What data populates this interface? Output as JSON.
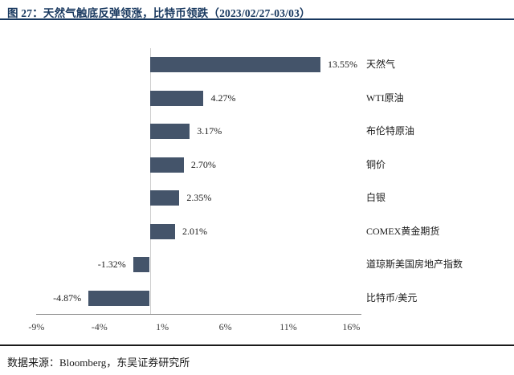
{
  "header": {
    "title": "图 27：天然气触底反弹领涨，比特币领跌（2023/02/27-03/03）"
  },
  "footer": {
    "source": "数据来源：Bloomberg，东吴证券研究所"
  },
  "colors": {
    "title_text": "#17375E",
    "header_rule": "#17375E",
    "footer_rule": "#1A1A1A",
    "bar": "#44546A",
    "axis_line": "#8F8F8F",
    "zero_line": "#CFCFCF",
    "label_text": "#1A1A1A",
    "tick_text": "#3B3B3B"
  },
  "chart_data": {
    "type": "bar",
    "orientation": "horizontal",
    "title": "",
    "xlabel": "",
    "ylabel": "",
    "categories": [
      "天然气",
      "WTI原油",
      "布伦特原油",
      "铜价",
      "白银",
      "COMEX黄金期货",
      "道琼斯美国房地产指数",
      "比特币/美元"
    ],
    "values": [
      13.55,
      4.27,
      3.17,
      2.7,
      2.35,
      2.01,
      -1.32,
      -4.87
    ],
    "value_labels": [
      "13.55%",
      "4.27%",
      "3.17%",
      "2.70%",
      "2.35%",
      "2.01%",
      "-1.32%",
      "-4.87%"
    ],
    "x_tick_labels": [
      "-9%",
      "-4%",
      "1%",
      "6%",
      "11%",
      "16%"
    ],
    "x_tick_values": [
      -9,
      -4,
      1,
      6,
      11,
      16
    ],
    "xlim": [
      -9,
      16
    ],
    "grid": false,
    "legend": "none",
    "bar_color": "#44546A"
  }
}
